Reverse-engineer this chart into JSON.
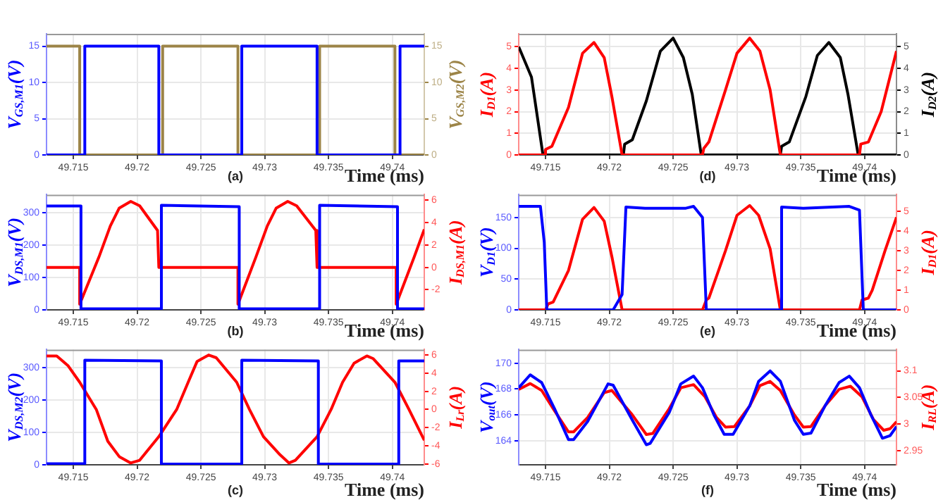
{
  "chart_data": [
    {
      "type": "line",
      "xlabel": "Time (ms)",
      "ylabel": "V$_{GS,M1}$(V)",
      "y2label": "V$_{GS,M2}$(V)",
      "annotations": [
        "(a)"
      ],
      "grid": true,
      "xlim": [
        49.7129,
        49.7425
      ],
      "xticks": [
        49.715,
        49.72,
        49.725,
        49.73,
        49.735,
        49.74
      ],
      "ylim": [
        0,
        16.7
      ],
      "yticks": [
        0,
        5,
        10,
        15
      ],
      "y2lim": [
        0,
        16.7
      ],
      "y2ticks": [
        0,
        5,
        10,
        15
      ],
      "series": [
        {
          "color": "#0000ff",
          "x": [
            49.7129,
            49.7159,
            49.7159,
            49.7217,
            49.7217,
            49.7282,
            49.7282,
            49.7341,
            49.7341,
            49.7406,
            49.7406,
            49.7425
          ],
          "values": [
            0,
            0,
            15,
            15,
            0,
            0,
            15,
            15,
            0,
            0,
            15,
            15
          ]
        },
        {
          "color": "#9c8447",
          "axis": "y2",
          "x": [
            49.7129,
            49.7155,
            49.7155,
            49.722,
            49.722,
            49.7279,
            49.7279,
            49.7343,
            49.7343,
            49.7402,
            49.7402,
            49.7425
          ],
          "values": [
            15,
            15,
            0,
            0,
            15,
            15,
            0,
            0,
            15,
            15,
            0,
            0
          ]
        }
      ]
    },
    {
      "type": "line",
      "xlabel": "Time (ms)",
      "ylabel": "V$_{DS,M1}$(V)",
      "y2label": "I$_{DS,M1}$(A)",
      "annotations": [
        "(b)"
      ],
      "grid": true,
      "xlim": [
        49.7129,
        49.7425
      ],
      "xticks": [
        49.715,
        49.72,
        49.725,
        49.73,
        49.735,
        49.74
      ],
      "ylim": [
        0,
        355
      ],
      "yticks": [
        0,
        100,
        200,
        300
      ],
      "y2lim": [
        -3.8,
        6.5
      ],
      "y2ticks": [
        -2,
        0,
        2,
        4,
        6
      ],
      "series": [
        {
          "color": "#0000ff",
          "x": [
            49.7129,
            49.7156,
            49.7156,
            49.7219,
            49.7219,
            49.728,
            49.728,
            49.7343,
            49.7343,
            49.7404,
            49.7404,
            49.7425
          ],
          "values": [
            320,
            320,
            3,
            3,
            322,
            318,
            3,
            3,
            322,
            318,
            3,
            3
          ]
        },
        {
          "color": "#ff0000",
          "axis": "y2",
          "x": [
            49.7129,
            49.7155,
            49.7155,
            49.717,
            49.7179,
            49.7186,
            49.7195,
            49.7202,
            49.7216,
            49.7217,
            49.7279,
            49.7279,
            49.7293,
            49.7302,
            49.7309,
            49.7318,
            49.7325,
            49.734,
            49.7341,
            49.7403,
            49.7403,
            49.7417,
            49.7425
          ],
          "values": [
            0,
            0,
            -3.3,
            0.9,
            3.7,
            5.3,
            5.9,
            5.5,
            3.3,
            0,
            0,
            -3.3,
            0.9,
            3.7,
            5.3,
            5.9,
            5.5,
            3.3,
            0,
            0,
            -3.3,
            0.9,
            3.4
          ]
        }
      ]
    },
    {
      "type": "line",
      "xlabel": "Time (ms)",
      "ylabel": "V$_{DS,M2}$(V)",
      "y2label": "I$_{Lr}$(A)",
      "annotations": [
        "(c)"
      ],
      "grid": true,
      "xlim": [
        49.7129,
        49.7425
      ],
      "xticks": [
        49.715,
        49.72,
        49.725,
        49.73,
        49.735,
        49.74
      ],
      "ylim": [
        0,
        355
      ],
      "yticks": [
        0,
        100,
        200,
        300
      ],
      "y2lim": [
        -6.1,
        6.6
      ],
      "y2ticks": [
        -6,
        -4,
        -2,
        0,
        2,
        4,
        6
      ],
      "series": [
        {
          "color": "#0000ff",
          "x": [
            49.7129,
            49.7159,
            49.7159,
            49.7219,
            49.7219,
            49.7282,
            49.7282,
            49.7342,
            49.7342,
            49.7405,
            49.7405,
            49.7425
          ],
          "values": [
            3,
            3,
            322,
            320,
            2,
            2,
            322,
            320,
            2,
            2,
            320,
            320
          ]
        },
        {
          "color": "#ff0000",
          "axis": "y2",
          "x": [
            49.7129,
            49.7137,
            49.7146,
            49.7155,
            49.7168,
            49.7177,
            49.7186,
            49.7195,
            49.7202,
            49.7217,
            49.7231,
            49.724,
            49.7247,
            49.7256,
            49.7262,
            49.7278,
            49.7288,
            49.7299,
            49.7312,
            49.7319,
            49.7324,
            49.7341,
            49.7352,
            49.7361,
            49.737,
            49.738,
            49.7385,
            49.7402,
            49.7413,
            49.7425
          ],
          "values": [
            5.9,
            5.9,
            4.8,
            3,
            0,
            -3.5,
            -5.2,
            -5.9,
            -5.6,
            -3,
            0,
            3,
            5.3,
            6,
            5.7,
            3,
            0,
            -3,
            -5,
            -5.9,
            -5.6,
            -3,
            0,
            3,
            5.1,
            5.9,
            5.6,
            3,
            0,
            -3.4
          ]
        }
      ]
    },
    {
      "type": "line",
      "xlabel": "Time (ms)",
      "ylabel": "I$_{D1}$(A)",
      "y2label": "I$_{D2}$(A)",
      "annotations": [
        "(d)"
      ],
      "grid": true,
      "xlim": [
        49.7129,
        49.7425
      ],
      "xticks": [
        49.715,
        49.72,
        49.725,
        49.73,
        49.735,
        49.74
      ],
      "ylim": [
        0,
        5.6
      ],
      "yticks": [
        0,
        1,
        2,
        3,
        4,
        5
      ],
      "y2lim": [
        0,
        5.6
      ],
      "y2ticks": [
        0,
        1,
        2,
        3,
        4,
        5
      ],
      "series": [
        {
          "color": "#ff0000",
          "x": [
            49.7129,
            49.715,
            49.715,
            49.7155,
            49.7168,
            49.7179,
            49.7188,
            49.7196,
            49.7202,
            49.721,
            49.7273,
            49.7274,
            49.7278,
            49.7291,
            49.73,
            49.731,
            49.7318,
            49.7326,
            49.7334,
            49.7396,
            49.7397,
            49.7403,
            49.7413,
            49.7425
          ],
          "values": [
            0,
            0,
            0.25,
            0.4,
            2.2,
            4.7,
            5.2,
            4.5,
            2.7,
            0,
            0,
            0.3,
            0.6,
            3,
            4.7,
            5.4,
            4.8,
            3,
            0,
            0,
            0.5,
            0.6,
            2,
            4.8
          ]
        },
        {
          "color": "#000000",
          "axis": "y2",
          "x": [
            49.7129,
            49.7139,
            49.7148,
            49.7211,
            49.7212,
            49.7218,
            49.7229,
            49.724,
            49.725,
            49.7258,
            49.7265,
            49.7272,
            49.7334,
            49.7335,
            49.7341,
            49.7354,
            49.7363,
            49.7372,
            49.7381,
            49.7387,
            49.7395,
            49.7425
          ],
          "values": [
            5,
            3.6,
            0,
            0,
            0.5,
            0.7,
            2.5,
            4.8,
            5.4,
            4.5,
            2.8,
            0,
            0,
            0.4,
            0.6,
            2.7,
            4.6,
            5.2,
            4.5,
            2.8,
            0,
            0
          ]
        }
      ]
    },
    {
      "type": "line",
      "xlabel": "Time (ms)",
      "ylabel": "V$_{D1}$(V)",
      "y2label": "I$_{D1}$(A)",
      "annotations": [
        "(e)"
      ],
      "grid": true,
      "xlim": [
        49.7129,
        49.7425
      ],
      "xticks": [
        49.715,
        49.72,
        49.725,
        49.73,
        49.735,
        49.74
      ],
      "ylim": [
        0,
        187
      ],
      "yticks": [
        0,
        50,
        100,
        150
      ],
      "y2lim": [
        0,
        5.85
      ],
      "y2ticks": [
        0,
        1,
        2,
        3,
        4,
        5
      ],
      "series": [
        {
          "color": "#0000ff",
          "x": [
            49.7129,
            49.7146,
            49.7149,
            49.7151,
            49.7203,
            49.721,
            49.7213,
            49.7228,
            49.726,
            49.7266,
            49.7273,
            49.7276,
            49.7335,
            49.7335,
            49.7352,
            49.7388,
            49.7396,
            49.7399,
            49.7425
          ],
          "values": [
            168,
            168,
            110,
            0,
            0,
            25,
            167,
            165,
            165,
            168,
            150,
            0,
            0,
            167,
            165,
            168,
            162,
            0,
            0
          ]
        },
        {
          "color": "#ff0000",
          "axis": "y2",
          "x": [
            49.7129,
            49.715,
            49.7152,
            49.7156,
            49.7168,
            49.7179,
            49.7188,
            49.7196,
            49.7202,
            49.721,
            49.7273,
            49.7276,
            49.7278,
            49.7291,
            49.73,
            49.731,
            49.7317,
            49.7326,
            49.7334,
            49.7396,
            49.7398,
            49.7403,
            49.7406,
            49.7416,
            49.7425
          ],
          "values": [
            0,
            0,
            0.3,
            0.4,
            2,
            4.6,
            5.2,
            4.5,
            2.7,
            0,
            0,
            0.5,
            0.6,
            3,
            4.8,
            5.3,
            4.8,
            3.1,
            0,
            0,
            0.5,
            0.6,
            1,
            3,
            4.7
          ]
        }
      ]
    },
    {
      "type": "line",
      "xlabel": "Time (ms)",
      "ylabel": "V$_{out}$(V)",
      "y2label": "I$_{RL}$(A)",
      "annotations": [
        "(f)"
      ],
      "grid": true,
      "xlim": [
        49.7129,
        49.7425
      ],
      "xticks": [
        49.715,
        49.72,
        49.725,
        49.73,
        49.735,
        49.74
      ],
      "ylim": [
        162.15,
        171.05
      ],
      "yticks": [
        164,
        166,
        168,
        170
      ],
      "y2lim": [
        2.923,
        3.14
      ],
      "y2ticks": [
        2.95,
        3,
        3.05,
        3.1
      ],
      "series": [
        {
          "color": "#0000ff",
          "x": [
            49.7129,
            49.7138,
            49.7147,
            49.7157,
            49.7168,
            49.7172,
            49.7183,
            49.7199,
            49.7203,
            49.7218,
            49.7229,
            49.7232,
            49.7247,
            49.7256,
            49.7266,
            49.7273,
            49.7282,
            49.729,
            49.7297,
            49.731,
            49.7317,
            49.7326,
            49.7334,
            49.7345,
            49.7352,
            49.7358,
            49.7369,
            49.738,
            49.7388,
            49.7396,
            49.7405,
            49.7414,
            49.742,
            49.7425
          ],
          "values": [
            168.1,
            169.1,
            168.5,
            166.5,
            164.1,
            164.1,
            165.5,
            168.4,
            168.3,
            165.6,
            163.7,
            163.8,
            166.2,
            168.4,
            169,
            168.1,
            166,
            164.5,
            164.5,
            166.7,
            168.6,
            169.4,
            168.6,
            165.6,
            164.5,
            164.6,
            166.7,
            168.5,
            169,
            168.1,
            166,
            164.2,
            164.4,
            165.1
          ]
        },
        {
          "color": "#ff0000",
          "axis": "y2",
          "x": [
            49.7129,
            49.7138,
            49.7147,
            49.7157,
            49.7168,
            49.7172,
            49.7183,
            49.7196,
            49.7202,
            49.7218,
            49.7229,
            49.7234,
            49.7247,
            49.7256,
            49.7266,
            49.7275,
            49.7284,
            49.7291,
            49.7298,
            49.731,
            49.7318,
            49.7326,
            49.7334,
            49.7345,
            49.7352,
            49.7358,
            49.7369,
            49.738,
            49.7389,
            49.7398,
            49.7407,
            49.7415,
            49.742,
            49.7425
          ],
          "values": [
            3.065,
            3.076,
            3.063,
            3.025,
            2.985,
            2.985,
            3.012,
            3.059,
            3.063,
            3.017,
            2.98,
            2.982,
            3.029,
            3.068,
            3.074,
            3.051,
            3.012,
            2.994,
            2.995,
            3.034,
            3.072,
            3.08,
            3.063,
            3.017,
            2.994,
            2.995,
            3.034,
            3.065,
            3.071,
            3.051,
            3.008,
            2.988,
            2.991,
            3.004
          ]
        }
      ]
    }
  ]
}
